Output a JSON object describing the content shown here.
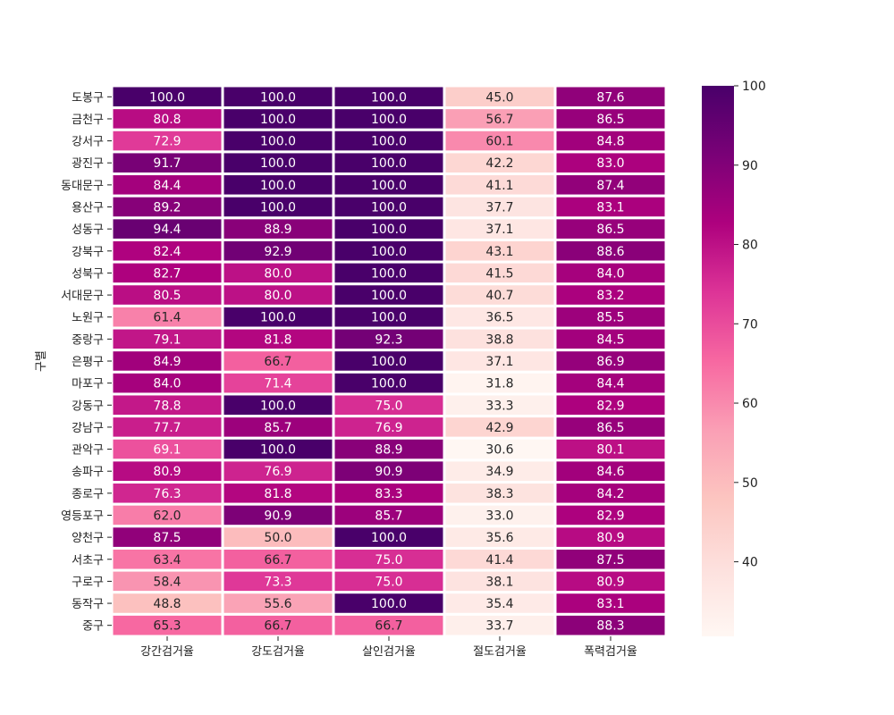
{
  "chart_data": {
    "type": "heatmap",
    "ylabel": "구별",
    "xlabel": "",
    "columns": [
      "강간검거율",
      "강도검거율",
      "살인검거율",
      "절도검거율",
      "폭력검거율"
    ],
    "rows": [
      "도봉구",
      "금천구",
      "강서구",
      "광진구",
      "동대문구",
      "용산구",
      "성동구",
      "강북구",
      "성북구",
      "서대문구",
      "노원구",
      "중랑구",
      "은평구",
      "마포구",
      "강동구",
      "강남구",
      "관악구",
      "송파구",
      "종로구",
      "영등포구",
      "양천구",
      "서초구",
      "구로구",
      "동작구",
      "중구"
    ],
    "values": [
      [
        100.0,
        100.0,
        100.0,
        45.0,
        87.6
      ],
      [
        80.8,
        100.0,
        100.0,
        56.7,
        86.5
      ],
      [
        72.9,
        100.0,
        100.0,
        60.1,
        84.8
      ],
      [
        91.7,
        100.0,
        100.0,
        42.2,
        83.0
      ],
      [
        84.4,
        100.0,
        100.0,
        41.1,
        87.4
      ],
      [
        89.2,
        100.0,
        100.0,
        37.7,
        83.1
      ],
      [
        94.4,
        88.9,
        100.0,
        37.1,
        86.5
      ],
      [
        82.4,
        92.9,
        100.0,
        43.1,
        88.6
      ],
      [
        82.7,
        80.0,
        100.0,
        41.5,
        84.0
      ],
      [
        80.5,
        80.0,
        100.0,
        40.7,
        83.2
      ],
      [
        61.4,
        100.0,
        100.0,
        36.5,
        85.5
      ],
      [
        79.1,
        81.8,
        92.3,
        38.8,
        84.5
      ],
      [
        84.9,
        66.7,
        100.0,
        37.1,
        86.9
      ],
      [
        84.0,
        71.4,
        100.0,
        31.8,
        84.4
      ],
      [
        78.8,
        100.0,
        75.0,
        33.3,
        82.9
      ],
      [
        77.7,
        85.7,
        76.9,
        42.9,
        86.5
      ],
      [
        69.1,
        100.0,
        88.9,
        30.6,
        80.1
      ],
      [
        80.9,
        76.9,
        90.9,
        34.9,
        84.6
      ],
      [
        76.3,
        81.8,
        83.3,
        38.3,
        84.2
      ],
      [
        62.0,
        90.9,
        85.7,
        33.0,
        82.9
      ],
      [
        87.5,
        50.0,
        100.0,
        35.6,
        80.9
      ],
      [
        63.4,
        66.7,
        75.0,
        41.4,
        87.5
      ],
      [
        58.4,
        73.3,
        75.0,
        38.1,
        80.9
      ],
      [
        48.8,
        55.6,
        100.0,
        35.4,
        83.1
      ],
      [
        65.3,
        66.7,
        66.7,
        33.7,
        88.3
      ]
    ],
    "vmin": 30.6,
    "vmax": 100.0,
    "colormap": "RdPu",
    "colorbar_ticks": [
      40,
      50,
      60,
      70,
      80,
      90,
      100
    ],
    "annotation_format": "0.1f",
    "colors": {
      "light_text": "#ffffff",
      "dark_text": "#262626",
      "grid": "#ffffff"
    }
  }
}
